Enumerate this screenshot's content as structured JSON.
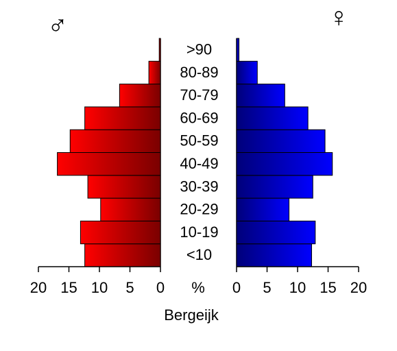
{
  "chart_data": {
    "type": "bar",
    "orientation": "horizontal",
    "layout": "population-pyramid",
    "title": "Bergeijk",
    "unit_label": "%",
    "categories": [
      "<10",
      "10-19",
      "20-29",
      "30-39",
      "40-49",
      "50-59",
      "60-69",
      "70-79",
      "80-89",
      ">90"
    ],
    "series": [
      {
        "name": "♂",
        "side": "left",
        "color": "#ff0000",
        "values": [
          12.4,
          13.1,
          9.8,
          11.9,
          16.9,
          14.8,
          12.4,
          6.7,
          1.9,
          0.2
        ]
      },
      {
        "name": "♀",
        "side": "right",
        "color": "#0000ff",
        "values": [
          12.3,
          12.9,
          8.6,
          12.5,
          15.7,
          14.5,
          11.7,
          7.9,
          3.4,
          0.4
        ]
      }
    ],
    "xlim": [
      0,
      20
    ],
    "ticks": [
      0,
      5,
      10,
      15,
      20
    ],
    "tick_labels": [
      "0",
      "5",
      "10",
      "15",
      "20"
    ],
    "grid": false,
    "legend": "symbols at top corners"
  }
}
